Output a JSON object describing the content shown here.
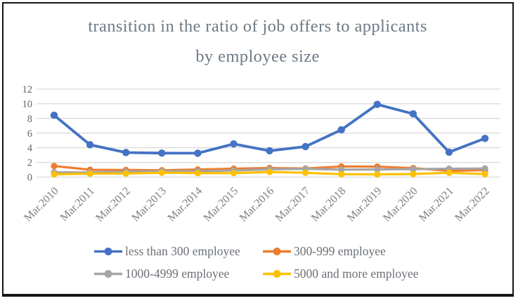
{
  "window": {
    "background": "#ffffff",
    "frame_border_color": "#141414"
  },
  "chart_data": {
    "type": "line",
    "title": "transition in the ratio of job offers to applicants by employee size",
    "title_lines": [
      "transition in the ratio of job offers to applicants",
      "by employee size"
    ],
    "xlabel": "",
    "ylabel": "",
    "categories": [
      "Mar.2010",
      "Mar.2011",
      "Mar.2012",
      "Mar.2013",
      "Mar.2014",
      "Mar.2015",
      "Mar.2016",
      "Mar.2017",
      "Mar.2018",
      "Mar.2019",
      "Mar.2020",
      "Mar.2021",
      "Mar.2022"
    ],
    "series": [
      {
        "name": "less than 300 employee",
        "color": "#4472C4",
        "values": [
          8.43,
          4.41,
          3.35,
          3.27,
          3.26,
          4.52,
          3.59,
          4.16,
          6.45,
          9.91,
          8.62,
          3.4,
          5.28
        ]
      },
      {
        "name": "300-999 employee",
        "color": "#ED7D31",
        "values": [
          1.51,
          1.0,
          0.97,
          0.93,
          1.03,
          1.15,
          1.23,
          1.17,
          1.45,
          1.43,
          1.22,
          0.86,
          0.94
        ]
      },
      {
        "name": "1000-4999 employee",
        "color": "#A5A5A5",
        "values": [
          0.66,
          0.63,
          0.74,
          0.81,
          0.79,
          0.9,
          1.06,
          1.12,
          1.02,
          1.04,
          1.08,
          1.14,
          1.17
        ]
      },
      {
        "name": "5000 and more employee",
        "color": "#FFC000",
        "values": [
          0.38,
          0.47,
          0.49,
          0.6,
          0.54,
          0.55,
          0.7,
          0.59,
          0.39,
          0.37,
          0.42,
          0.6,
          0.41
        ]
      }
    ],
    "ylim": [
      0,
      12
    ],
    "yticks": [
      0,
      2,
      4,
      6,
      8,
      10,
      12
    ],
    "grid": true,
    "grid_color": "#D9D9D9",
    "axis_text_color": "#63676c",
    "category_text_color": "#7f7f7f",
    "title_color": "#6e7a86",
    "legend_text_color": "#6b7076",
    "legend_position": "bottom"
  }
}
